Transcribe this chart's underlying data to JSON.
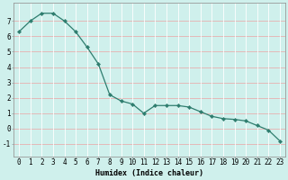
{
  "xlabel": "Humidex (Indice chaleur)",
  "ylabel": "",
  "x": [
    0,
    1,
    2,
    3,
    4,
    5,
    6,
    7,
    8,
    9,
    10,
    11,
    12,
    13,
    14,
    15,
    16,
    17,
    18,
    19,
    20,
    21,
    22,
    23
  ],
  "y": [
    6.3,
    7.0,
    7.5,
    7.5,
    7.0,
    6.3,
    5.3,
    4.2,
    2.2,
    1.8,
    1.6,
    1.0,
    1.5,
    1.5,
    1.5,
    1.4,
    1.1,
    0.8,
    0.65,
    0.6,
    0.5,
    0.2,
    -0.1,
    -0.8
  ],
  "line_color": "#2e7d6e",
  "marker": "D",
  "marker_size": 2.2,
  "bg_color": "#cff0ec",
  "grid_color_v": "#ffffff",
  "grid_color_h": "#e8b0b0",
  "xlim": [
    -0.5,
    23.5
  ],
  "ylim": [
    -1.8,
    8.2
  ],
  "yticks": [
    -1,
    0,
    1,
    2,
    3,
    4,
    5,
    6,
    7
  ],
  "xticks": [
    0,
    1,
    2,
    3,
    4,
    5,
    6,
    7,
    8,
    9,
    10,
    11,
    12,
    13,
    14,
    15,
    16,
    17,
    18,
    19,
    20,
    21,
    22,
    23
  ],
  "label_fontsize": 6.0,
  "tick_fontsize": 5.5
}
